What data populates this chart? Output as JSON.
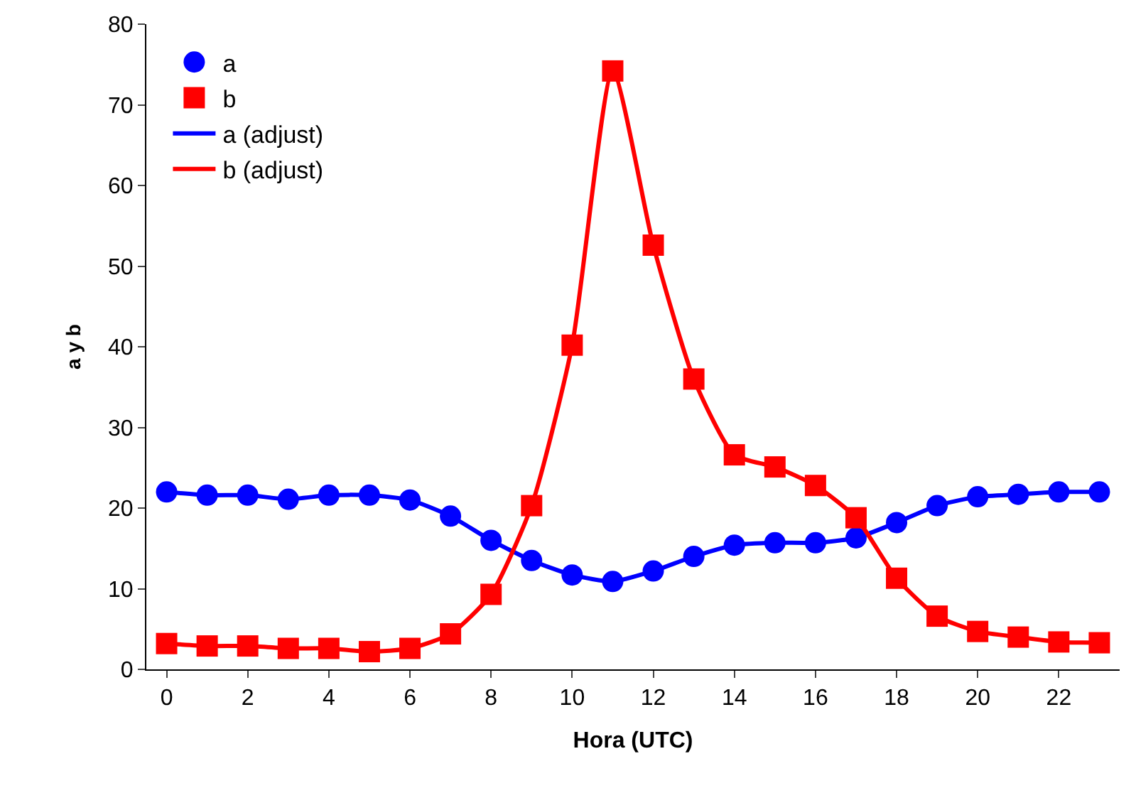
{
  "chart_data": {
    "type": "scatter",
    "xlabel": "Hora (UTC)",
    "ylabel": "a y b",
    "categories": [
      "0",
      null,
      "2",
      null,
      "4",
      null,
      "6",
      null,
      "8",
      null,
      "10",
      null,
      "12",
      null,
      "14",
      null,
      "16",
      null,
      "18",
      null,
      "20",
      null,
      "22",
      null
    ],
    "ylim": [
      0,
      80
    ],
    "yticks": [
      0,
      10,
      20,
      30,
      40,
      50,
      60,
      70,
      80
    ],
    "legend": "top left",
    "series": [
      {
        "name": "a",
        "marker": "circle",
        "color": "#0000ff",
        "values": [
          22.0,
          21.6,
          21.6,
          21.1,
          21.6,
          21.6,
          21.0,
          19.0,
          16.0,
          13.5,
          11.7,
          10.9,
          12.2,
          14.0,
          15.4,
          15.7,
          15.7,
          16.3,
          18.2,
          20.3,
          21.4,
          21.7,
          22.0,
          22.0
        ]
      },
      {
        "name": "b",
        "marker": "square",
        "color": "#ff0000",
        "values": [
          3.2,
          2.9,
          2.9,
          2.6,
          2.6,
          2.2,
          2.6,
          4.4,
          9.3,
          20.3,
          40.2,
          74.2,
          52.6,
          36.0,
          26.6,
          25.1,
          22.8,
          18.8,
          11.3,
          6.6,
          4.7,
          4.0,
          3.4,
          3.3
        ]
      },
      {
        "name": "a (adjust)",
        "type": "line",
        "marker": "none",
        "line_style": "solid",
        "color": "#0000ff",
        "values": [
          22.0,
          21.6,
          21.6,
          21.1,
          21.6,
          21.6,
          21.0,
          19.0,
          16.0,
          13.5,
          11.7,
          10.9,
          12.2,
          14.0,
          15.4,
          15.7,
          15.7,
          16.3,
          18.2,
          20.3,
          21.4,
          21.7,
          22.0,
          22.0
        ]
      },
      {
        "name": "b (adjust)",
        "type": "line",
        "marker": "none",
        "line_style": "solid",
        "color": "#ff0000",
        "values": [
          3.2,
          2.9,
          2.9,
          2.6,
          2.6,
          2.2,
          2.6,
          4.4,
          9.3,
          20.3,
          40.2,
          74.2,
          52.6,
          36.0,
          26.6,
          25.1,
          22.8,
          18.8,
          11.3,
          6.6,
          4.7,
          4.0,
          3.4,
          3.3
        ]
      }
    ]
  }
}
